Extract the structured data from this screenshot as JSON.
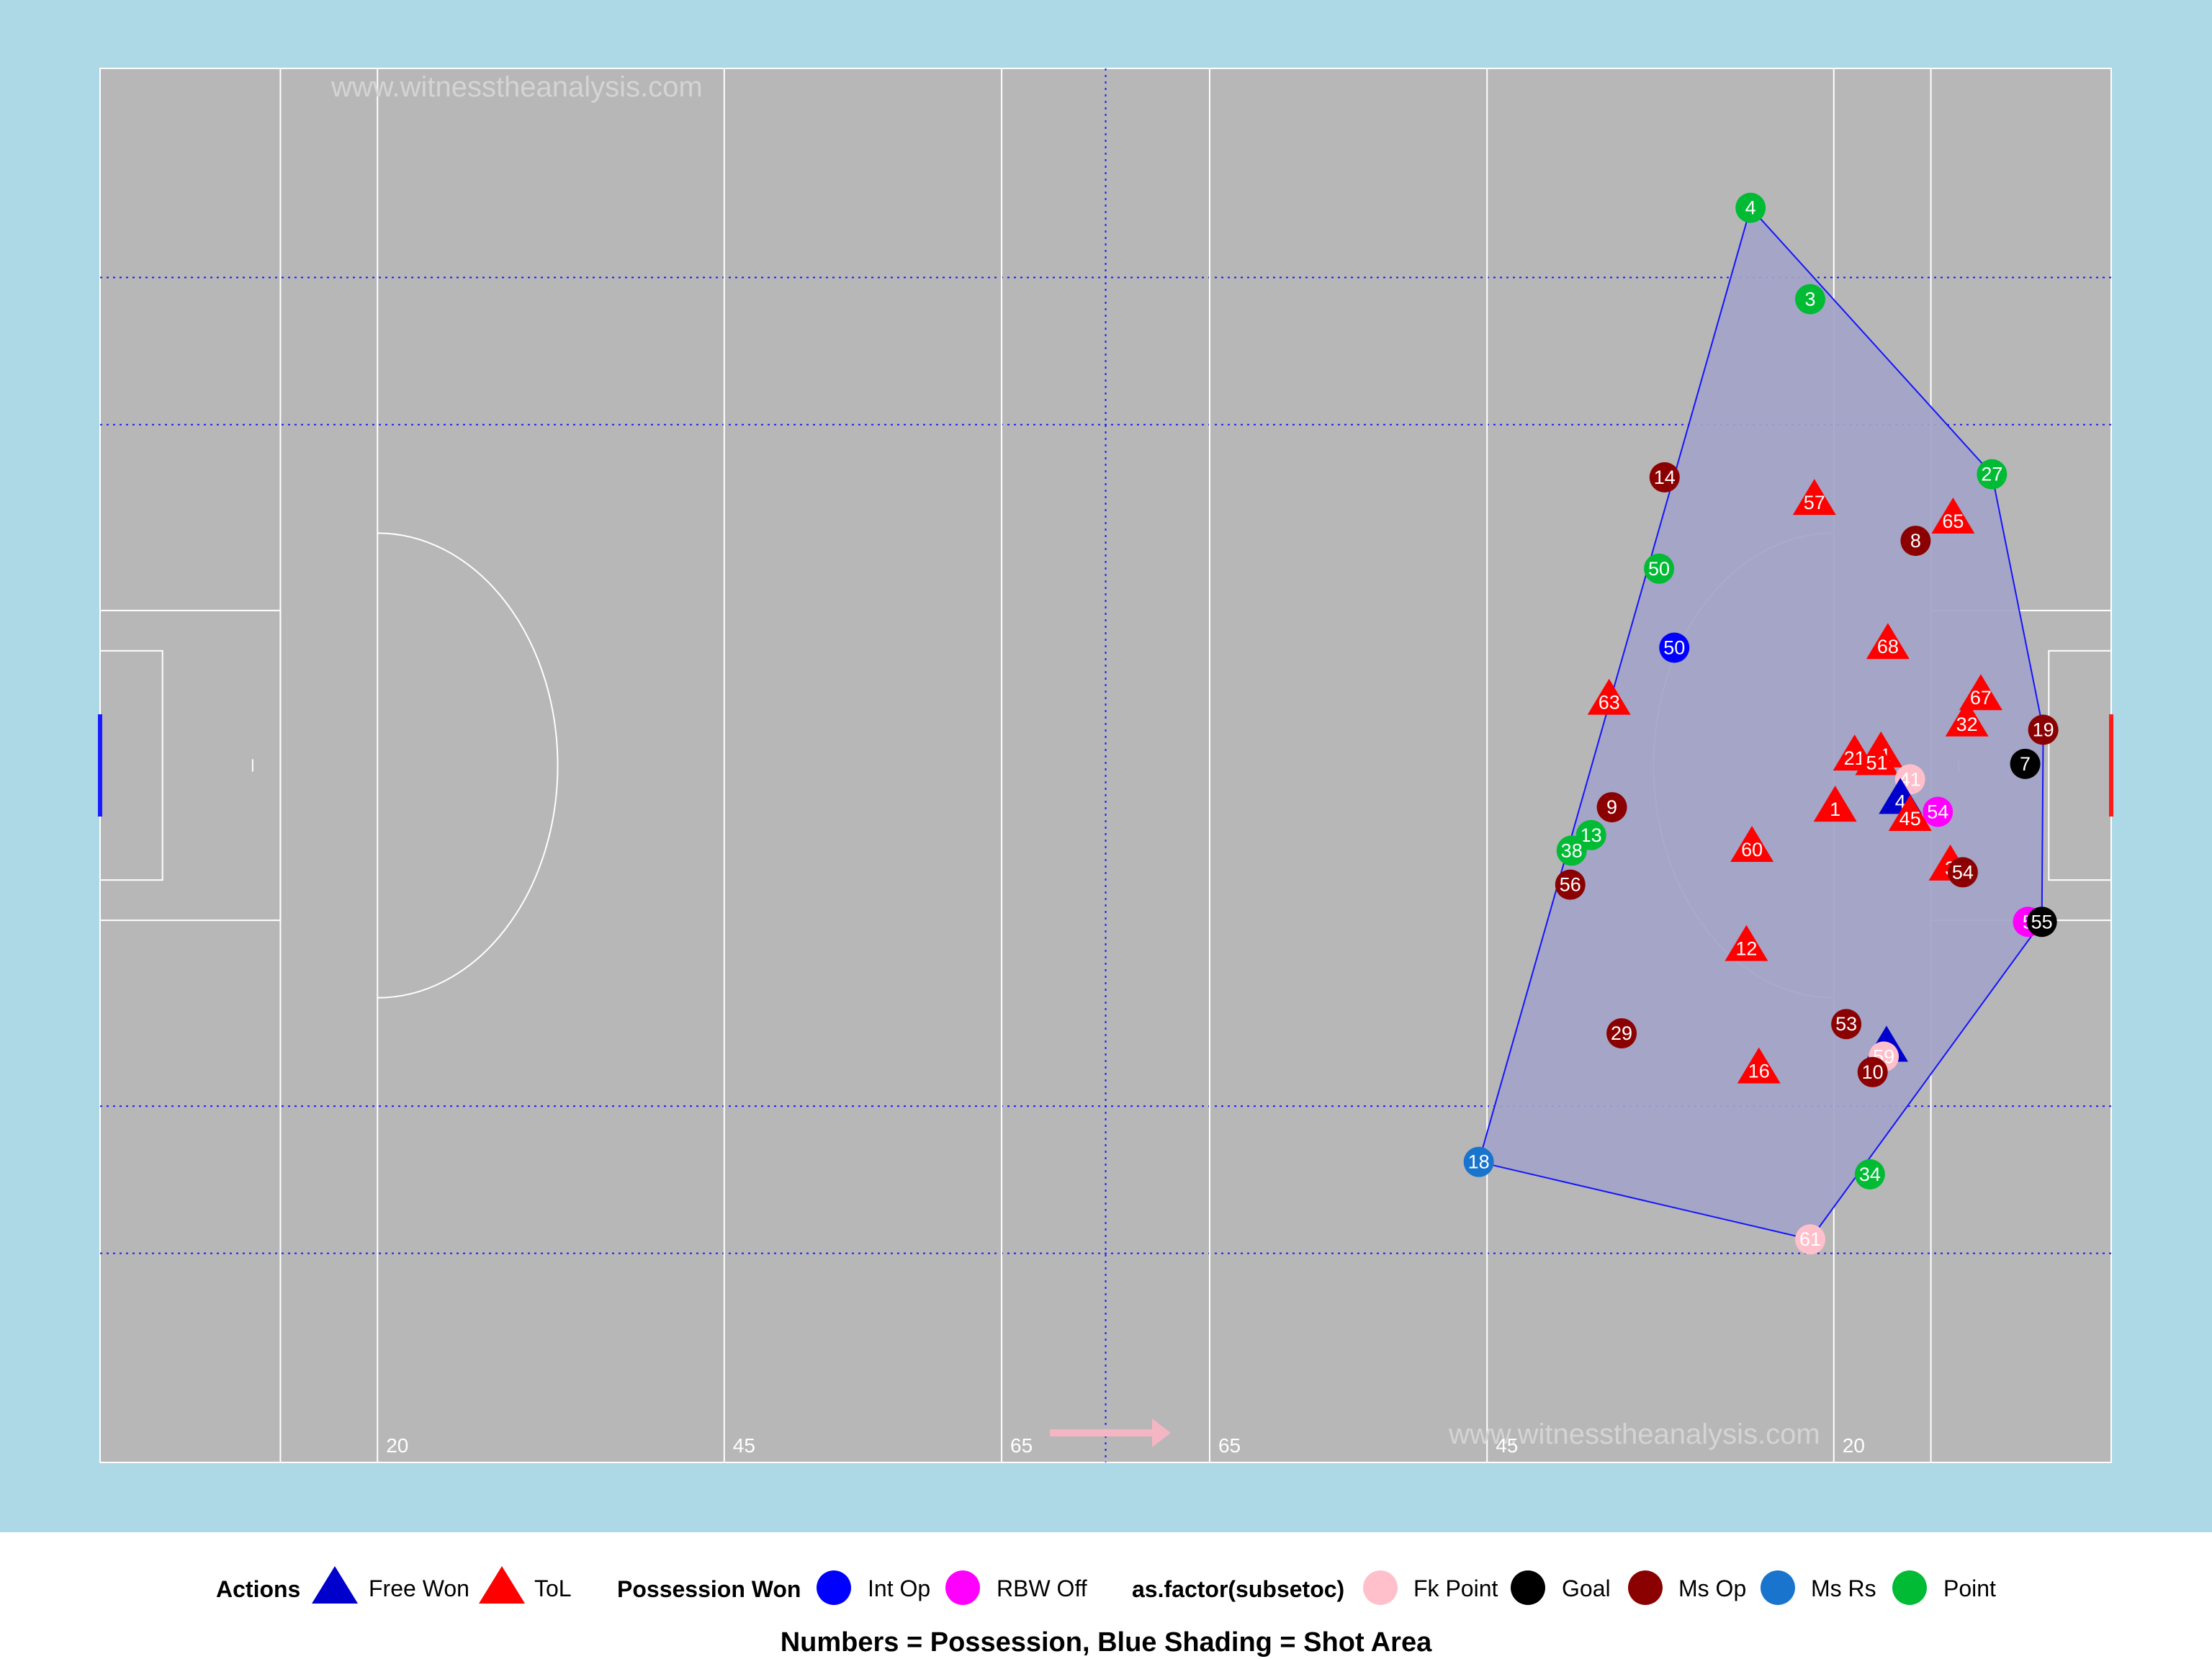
{
  "chart_data": {
    "type": "scatter",
    "title": "",
    "caption": "Numbers = Possession, Blue Shading = Shot Area",
    "watermark": "www.witnesstheanalysis.com",
    "xlim": [
      0,
      145
    ],
    "ylim": [
      0,
      90
    ],
    "grid": "dotted blue reference lines",
    "attack_direction": "right",
    "pitch_labels": [
      "20",
      "45",
      "65",
      "65",
      "45",
      "20"
    ],
    "colors": {
      "panel_bg": "#add8e6",
      "pitch": "#b7b7b7",
      "pitch_lines": "#ffffff",
      "grid_lines": "#1a1aff",
      "shot_area_fill": "#a3a3c8",
      "shot_area_border": "#1414ff",
      "arrow": "#f4b6c2",
      "left_goal": "#1a1aff",
      "right_goal": "#ff1a1a"
    },
    "legend_position": "bottom",
    "legends": [
      {
        "title": "Actions",
        "entries": [
          {
            "label": "Free Won",
            "shape": "triangle",
            "color": "#0000cd"
          },
          {
            "label": "ToL",
            "shape": "triangle",
            "color": "#ff0000"
          }
        ]
      },
      {
        "title": "Possession Won",
        "entries": [
          {
            "label": "Int Op",
            "shape": "circle",
            "color": "#0000ff"
          },
          {
            "label": "RBW Off",
            "shape": "circle",
            "color": "#ff00ff"
          }
        ]
      },
      {
        "title": "as.factor(subsetoc)",
        "entries": [
          {
            "label": "Fk Point",
            "shape": "circle",
            "color": "#ffc0cb"
          },
          {
            "label": "Goal",
            "shape": "circle",
            "color": "#000000"
          },
          {
            "label": "Ms Op",
            "shape": "circle",
            "color": "#8b0000"
          },
          {
            "label": "Ms Rs",
            "shape": "circle",
            "color": "#1874cd"
          },
          {
            "label": "Point",
            "shape": "circle",
            "color": "#00bb33"
          }
        ]
      }
    ],
    "points": [
      {
        "label": "4",
        "category": "Point",
        "shape": "circle",
        "x": 119.0,
        "y": 81.0
      },
      {
        "label": "3",
        "category": "Point",
        "shape": "circle",
        "x": 123.3,
        "y": 75.1
      },
      {
        "label": "27",
        "category": "Point",
        "shape": "circle",
        "x": 136.4,
        "y": 63.8
      },
      {
        "label": "14",
        "category": "Ms Op",
        "shape": "circle",
        "x": 112.8,
        "y": 63.6
      },
      {
        "label": "57",
        "category": "ToL",
        "shape": "triangle",
        "x": 123.6,
        "y": 62.1
      },
      {
        "label": "65",
        "category": "ToL",
        "shape": "triangle",
        "x": 133.6,
        "y": 60.9
      },
      {
        "label": "8",
        "category": "Ms Op",
        "shape": "circle",
        "x": 130.9,
        "y": 59.5
      },
      {
        "label": "50",
        "category": "Point",
        "shape": "circle",
        "x": 112.4,
        "y": 57.7
      },
      {
        "label": "50",
        "category": "Int Op",
        "shape": "circle",
        "x": 113.5,
        "y": 52.6
      },
      {
        "label": "68",
        "category": "ToL",
        "shape": "triangle",
        "x": 128.9,
        "y": 52.8
      },
      {
        "label": "63",
        "category": "ToL",
        "shape": "triangle",
        "x": 108.8,
        "y": 49.2
      },
      {
        "label": "67",
        "category": "ToL",
        "shape": "triangle",
        "x": 135.6,
        "y": 49.5
      },
      {
        "label": "32",
        "category": "ToL",
        "shape": "triangle",
        "x": 134.6,
        "y": 47.8
      },
      {
        "label": "19",
        "category": "Ms Op",
        "shape": "circle",
        "x": 140.1,
        "y": 47.3
      },
      {
        "label": "21",
        "category": "ToL",
        "shape": "triangle",
        "x": 126.5,
        "y": 45.6
      },
      {
        "label": "11",
        "category": "ToL",
        "shape": "triangle",
        "x": 128.4,
        "y": 45.8
      },
      {
        "label": "51",
        "category": "ToL",
        "shape": "triangle",
        "x": 128.1,
        "y": 45.3
      },
      {
        "label": "7",
        "category": "Goal",
        "shape": "circle",
        "x": 138.8,
        "y": 45.1
      },
      {
        "label": "41",
        "category": "Fk Point",
        "shape": "circle",
        "x": 130.5,
        "y": 44.1
      },
      {
        "label": "1",
        "category": "ToL",
        "shape": "triangle",
        "x": 125.1,
        "y": 42.3
      },
      {
        "label": "4",
        "category": "Free Won",
        "shape": "triangle",
        "x": 129.8,
        "y": 42.8
      },
      {
        "label": "54",
        "category": "RBW Off",
        "shape": "circle",
        "x": 132.5,
        "y": 42.0
      },
      {
        "label": "45",
        "category": "ToL",
        "shape": "triangle",
        "x": 130.5,
        "y": 41.7
      },
      {
        "label": "9",
        "category": "Ms Op",
        "shape": "circle",
        "x": 109.0,
        "y": 42.3
      },
      {
        "label": "13",
        "category": "Point",
        "shape": "circle",
        "x": 107.5,
        "y": 40.5
      },
      {
        "label": "38",
        "category": "Point",
        "shape": "circle",
        "x": 106.1,
        "y": 39.5
      },
      {
        "label": "60",
        "category": "ToL",
        "shape": "triangle",
        "x": 119.1,
        "y": 39.7
      },
      {
        "label": "3",
        "category": "ToL",
        "shape": "triangle",
        "x": 133.4,
        "y": 38.5
      },
      {
        "label": "54",
        "category": "Ms Op",
        "shape": "circle",
        "x": 134.3,
        "y": 38.1
      },
      {
        "label": "56",
        "category": "Ms Op",
        "shape": "circle",
        "x": 106.0,
        "y": 37.3
      },
      {
        "label": "5",
        "category": "RBW Off",
        "shape": "circle",
        "x": 139.0,
        "y": 34.9
      },
      {
        "label": "55",
        "category": "Goal",
        "shape": "circle",
        "x": 140.0,
        "y": 34.9
      },
      {
        "label": "12",
        "category": "ToL",
        "shape": "triangle",
        "x": 118.7,
        "y": 33.3
      },
      {
        "label": "53",
        "category": "Ms Op",
        "shape": "circle",
        "x": 125.9,
        "y": 28.3
      },
      {
        "label": "29",
        "category": "Ms Op",
        "shape": "circle",
        "x": 109.7,
        "y": 27.7
      },
      {
        "label": "",
        "category": "Free Won",
        "shape": "triangle",
        "x": 128.8,
        "y": 26.8
      },
      {
        "label": "59",
        "category": "Fk Point",
        "shape": "circle",
        "x": 128.6,
        "y": 26.2
      },
      {
        "label": "16",
        "category": "ToL",
        "shape": "triangle",
        "x": 119.6,
        "y": 25.4
      },
      {
        "label": "10",
        "category": "Ms Op",
        "shape": "circle",
        "x": 127.8,
        "y": 25.2
      },
      {
        "label": "18",
        "category": "Ms Rs",
        "shape": "circle",
        "x": 99.4,
        "y": 19.4
      },
      {
        "label": "34",
        "category": "Point",
        "shape": "circle",
        "x": 127.6,
        "y": 18.6
      },
      {
        "label": "61",
        "category": "Fk Point",
        "shape": "circle",
        "x": 123.3,
        "y": 14.4
      }
    ],
    "shot_area_hull": [
      {
        "x": 119.0,
        "y": 81.0
      },
      {
        "x": 136.4,
        "y": 63.8
      },
      {
        "x": 140.1,
        "y": 47.3
      },
      {
        "x": 140.0,
        "y": 34.9
      },
      {
        "x": 123.3,
        "y": 14.4
      },
      {
        "x": 99.4,
        "y": 19.4
      }
    ]
  }
}
